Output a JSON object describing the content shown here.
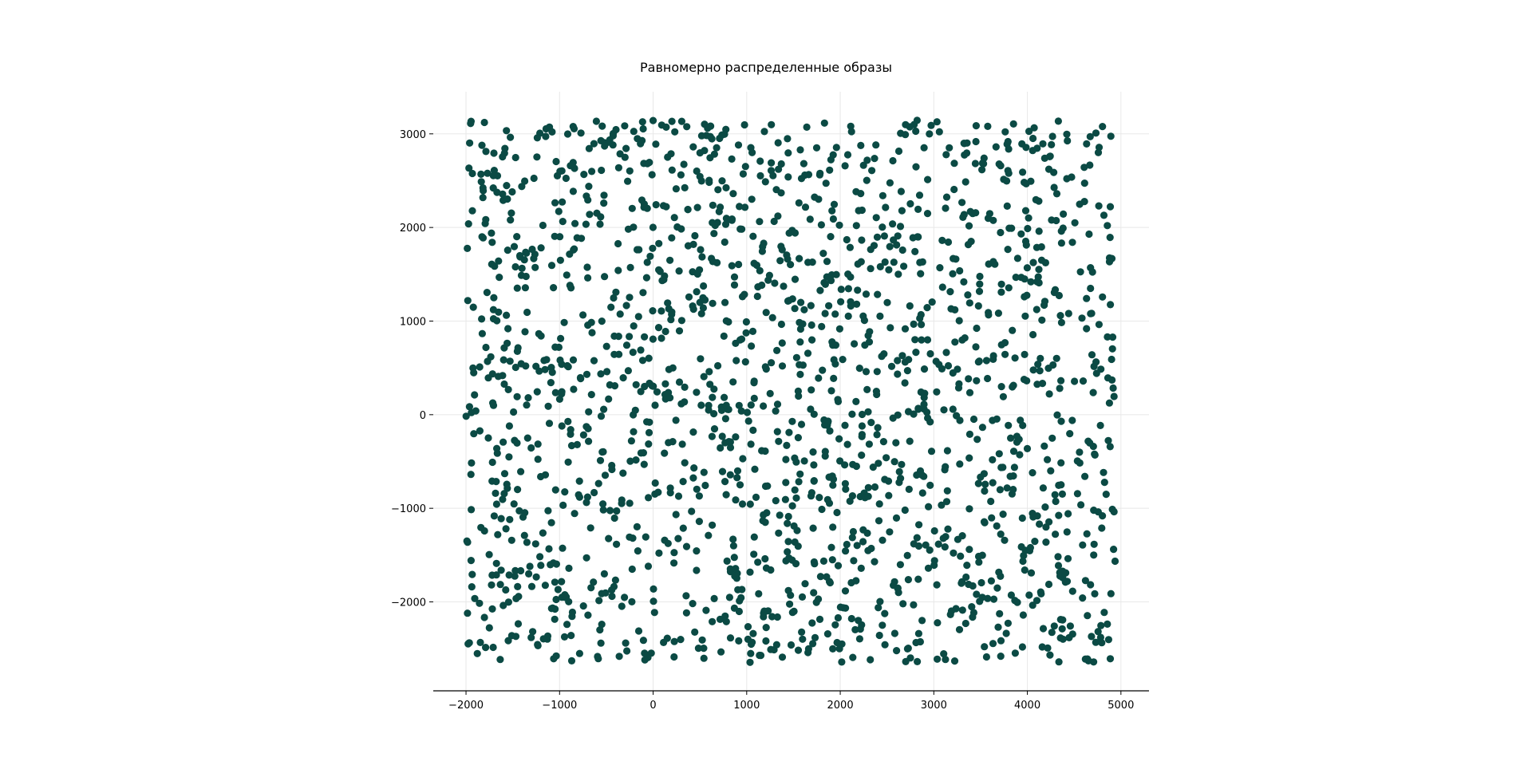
{
  "chart_data": {
    "type": "scatter",
    "title": "Равномерно распределенные образы",
    "xlabel": "",
    "ylabel": "",
    "xlim": [
      -2350,
      5300
    ],
    "ylim": [
      -2950,
      3450
    ],
    "x_ticks": [
      -2000,
      -1000,
      0,
      1000,
      2000,
      3000,
      4000,
      5000
    ],
    "x_tick_labels": [
      "−2000",
      "−1000",
      "0",
      "1000",
      "2000",
      "3000",
      "4000",
      "5000"
    ],
    "y_ticks": [
      -2000,
      -1000,
      0,
      1000,
      2000,
      3000
    ],
    "y_tick_labels": [
      "−2000",
      "−1000",
      "0",
      "1000",
      "2000",
      "3000"
    ],
    "grid": true,
    "marker_color": "#0b4a44",
    "point_count": 1800,
    "x_range_of_points": [
      -2000,
      4950
    ],
    "y_range_of_points": [
      -2650,
      3150
    ],
    "distribution": "uniform"
  }
}
